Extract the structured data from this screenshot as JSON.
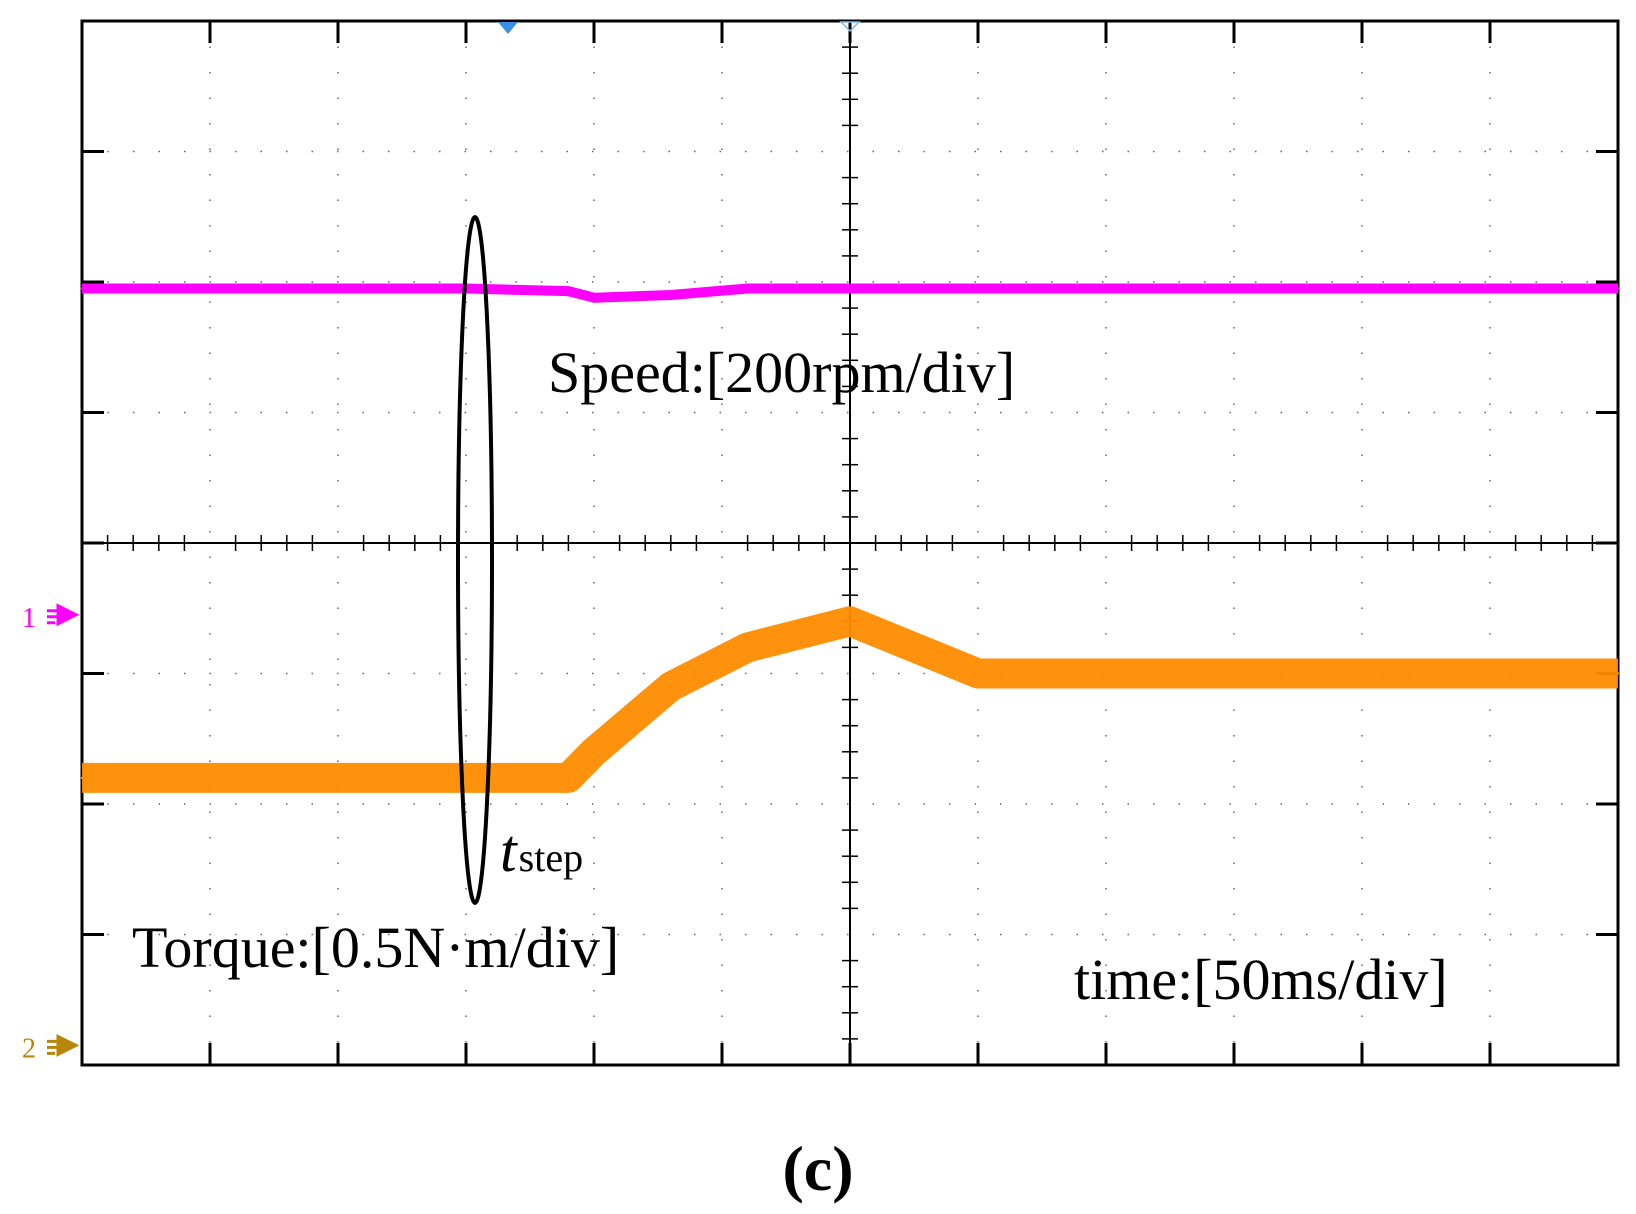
{
  "chart_data": {
    "type": "line",
    "title": "",
    "subtitle": "(c)",
    "grid": true,
    "divisions": {
      "x": 12,
      "y": 8
    },
    "time_per_div_ms": 50,
    "x": [
      0,
      50,
      100,
      150,
      190,
      200,
      230,
      260,
      300,
      350,
      400,
      450,
      500,
      550,
      600
    ],
    "xlim": [
      0,
      600
    ],
    "ylim": [
      -4,
      4
    ],
    "series": [
      {
        "name": "Speed",
        "color": "#ff00ff",
        "units": "div",
        "values": [
          1.95,
          1.95,
          1.95,
          1.95,
          1.93,
          1.88,
          1.9,
          1.95,
          1.95,
          1.95,
          1.95,
          1.95,
          1.95,
          1.95,
          1.95
        ]
      },
      {
        "name": "Torque",
        "color": "#ff8c00",
        "units": "div",
        "values": [
          -1.8,
          -1.8,
          -1.8,
          -1.8,
          -1.8,
          -1.6,
          -1.1,
          -0.8,
          -0.6,
          -1.0,
          -1.0,
          -1.0,
          -1.0,
          -1.0,
          -1.0
        ]
      }
    ],
    "annotations": {
      "speed_scale": "Speed:[200rpm/div]",
      "torque_scale": "Torque:[0.5N·m/div]",
      "time_scale": "time:[50ms/div]",
      "step_label_main": "t",
      "step_label_sub": "step",
      "step_time_ms": 150
    },
    "channel_markers": [
      {
        "label": "1",
        "color": "#ff00ff",
        "level_div": -0.55
      },
      {
        "label": "2",
        "color": "#b8860b",
        "level_div": -3.85
      }
    ]
  }
}
